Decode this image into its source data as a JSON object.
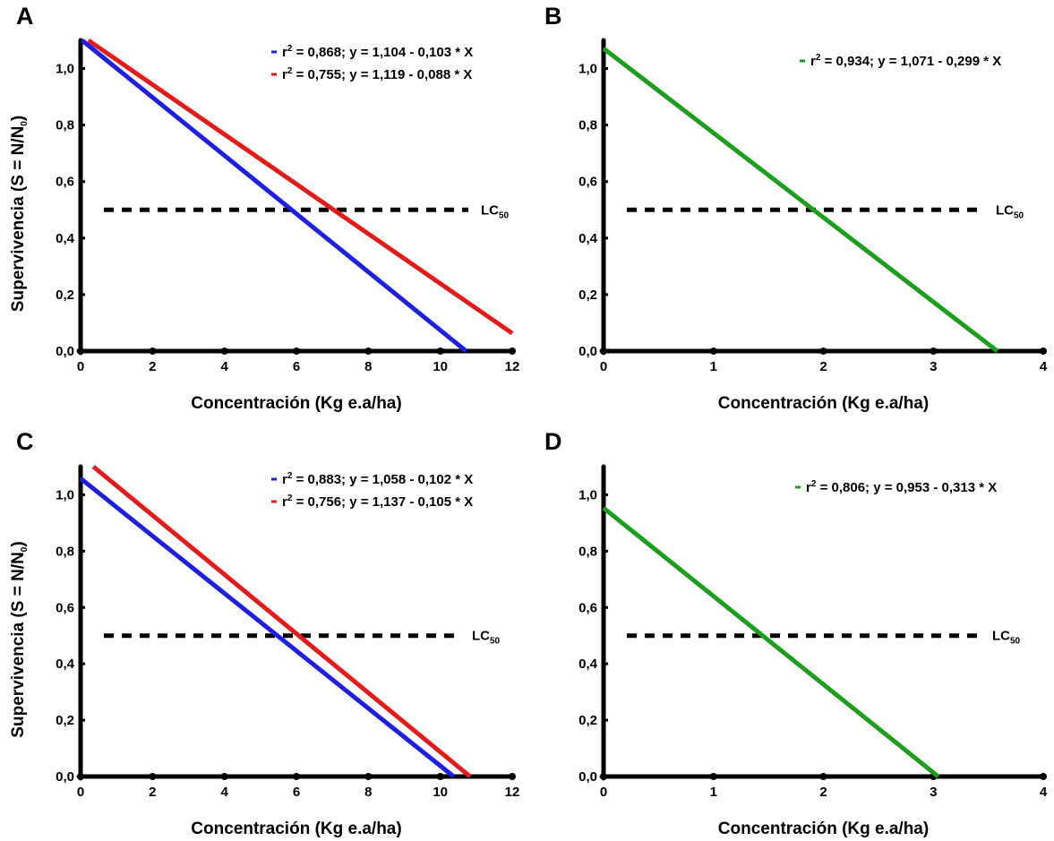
{
  "chart_data": [
    {
      "panel": "A",
      "type": "line",
      "xlabel": "Concentración (Kg e.a/ha)",
      "ylabel": "Supervivencia (S = N/N0)",
      "xlim": [
        0,
        12
      ],
      "ylim": [
        0,
        1.1
      ],
      "xticks": [
        "0",
        "2",
        "4",
        "6",
        "8",
        "10",
        "12"
      ],
      "yticks": [
        "0,0",
        "0,2",
        "0,4",
        "0,6",
        "0,8",
        "1,0"
      ],
      "series": [
        {
          "color": "#1f1fe0",
          "equation": "r2 = 0,868; y = 1,104 - 0,103 * X",
          "intercept": 1.104,
          "slope": -0.103
        },
        {
          "color": "#e21b1b",
          "equation": "r2 = 0,755; y = 1,119 - 0,088 * X",
          "intercept": 1.119,
          "slope": -0.088
        }
      ],
      "reference_line": {
        "label": "LC50",
        "y": 0.5
      }
    },
    {
      "panel": "B",
      "type": "line",
      "xlabel": "Concentración (Kg e.a/ha)",
      "ylabel": "",
      "xlim": [
        0,
        4
      ],
      "ylim": [
        0,
        1.1
      ],
      "xticks": [
        "0",
        "1",
        "2",
        "3",
        "4"
      ],
      "yticks": [
        "0,0",
        "0,2",
        "0,4",
        "0,6",
        "0,8",
        "1,0"
      ],
      "series": [
        {
          "color": "#1e9e1e",
          "equation": "r2 = 0,934; y = 1,071 - 0,299 * X",
          "intercept": 1.071,
          "slope": -0.299
        }
      ],
      "reference_line": {
        "label": "LC50",
        "y": 0.5
      }
    },
    {
      "panel": "C",
      "type": "line",
      "xlabel": "Concentración (Kg e.a/ha)",
      "ylabel": "Supervivencia (S = N/N0)",
      "xlim": [
        0,
        12
      ],
      "ylim": [
        0,
        1.1
      ],
      "xticks": [
        "0",
        "2",
        "4",
        "6",
        "8",
        "10",
        "12"
      ],
      "yticks": [
        "0,0",
        "0,2",
        "0,4",
        "0,6",
        "0,8",
        "1,0"
      ],
      "series": [
        {
          "color": "#1f1fe0",
          "equation": "r2 = 0,883; y = 1,058 - 0,102 * X",
          "intercept": 1.058,
          "slope": -0.102
        },
        {
          "color": "#e21b1b",
          "equation": "r2 = 0,756; y = 1,137 - 0,105 * X",
          "intercept": 1.137,
          "slope": -0.105
        }
      ],
      "reference_line": {
        "label": "LC50",
        "y": 0.5
      }
    },
    {
      "panel": "D",
      "type": "line",
      "xlabel": "Concentración (Kg e.a/ha)",
      "ylabel": "",
      "xlim": [
        0,
        4
      ],
      "ylim": [
        0,
        1.1
      ],
      "xticks": [
        "0",
        "1",
        "2",
        "3",
        "4"
      ],
      "yticks": [
        "0,0",
        "0,2",
        "0,4",
        "0,6",
        "0,8",
        "1,0"
      ],
      "series": [
        {
          "color": "#1e9e1e",
          "equation": "r2 = 0,806; y = 0,953 - 0,313 * X",
          "intercept": 0.953,
          "slope": -0.313
        }
      ],
      "reference_line": {
        "label": "LC50",
        "y": 0.5
      }
    }
  ]
}
